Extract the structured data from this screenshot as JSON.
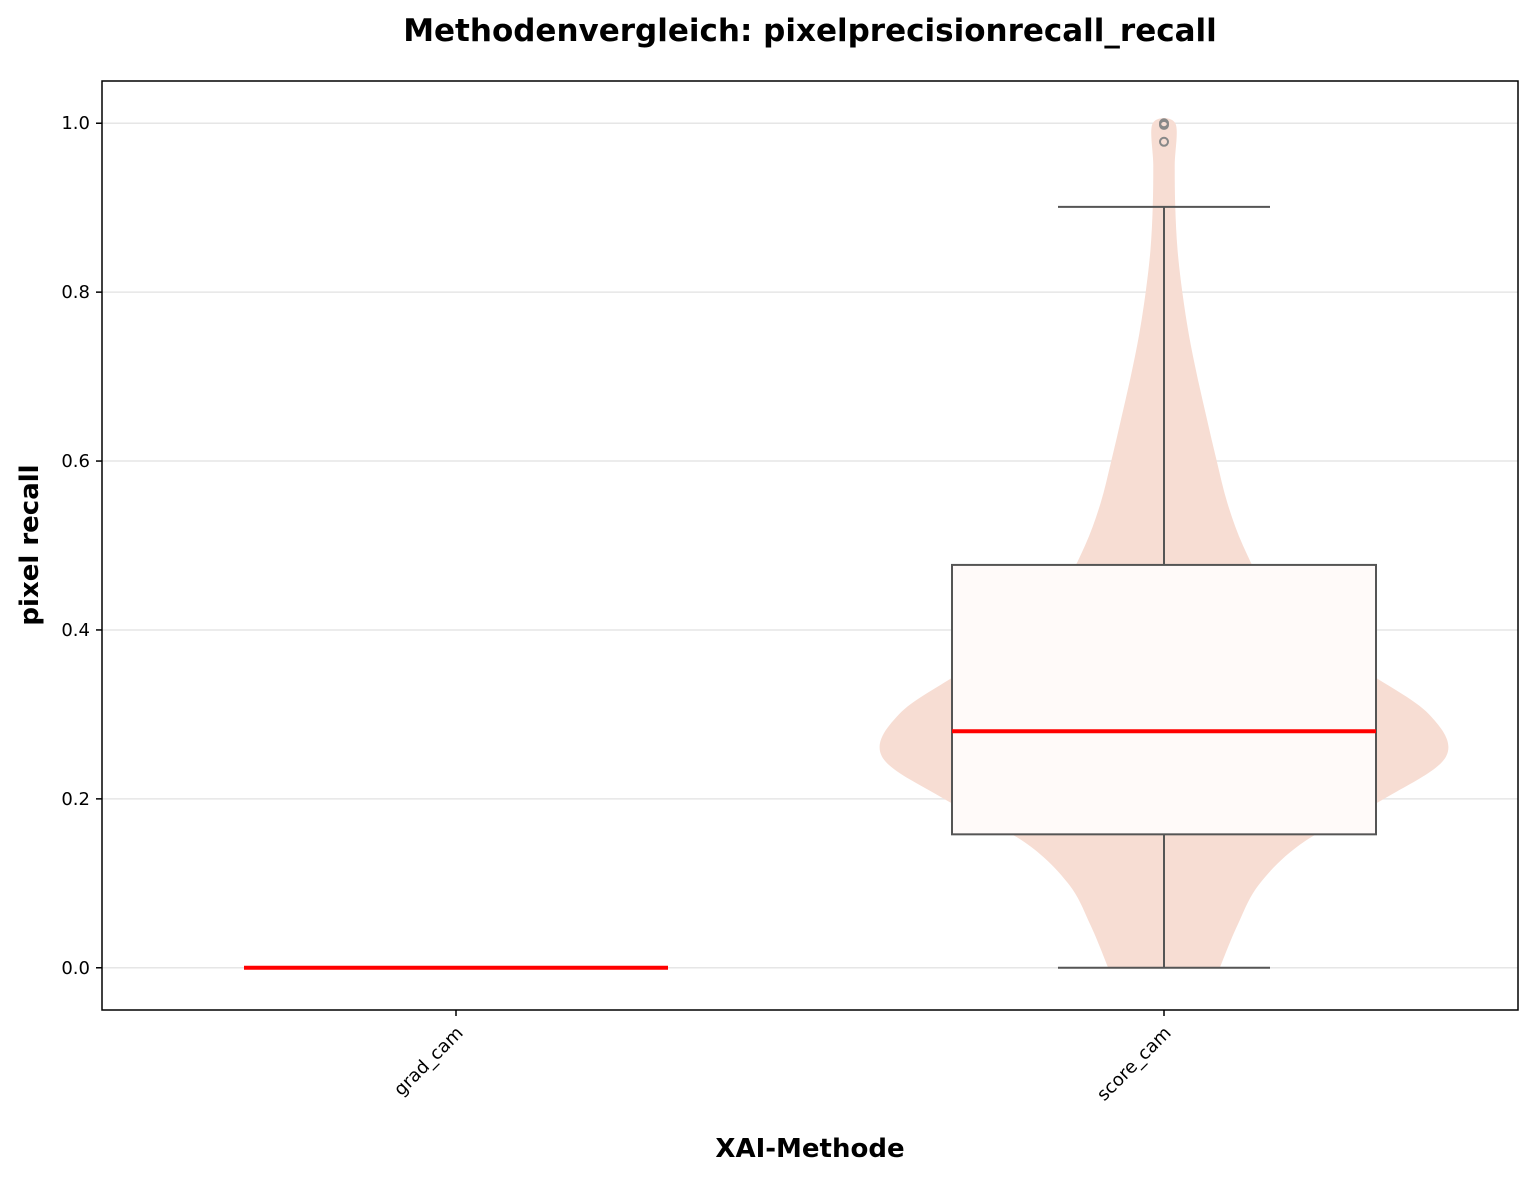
{
  "chart_data": {
    "type": "violin+box",
    "title": "Methodenvergleich: pixelprecisionrecall_recall",
    "xlabel": "XAI-Methode",
    "ylabel": "pixel recall",
    "ylim": [
      -0.05,
      1.05
    ],
    "yticks": [
      0.0,
      0.2,
      0.4,
      0.6,
      0.8,
      1.0
    ],
    "ytick_labels": [
      "0.0",
      "0.2",
      "0.4",
      "0.6",
      "0.8",
      "1.0"
    ],
    "grid": "horizontal",
    "categories": [
      "grad_cam",
      "score_cam"
    ],
    "series": [
      {
        "category": "grad_cam",
        "min": 0.0,
        "q1": 0.0,
        "median": 0.0,
        "q3": 0.0,
        "max": 0.0,
        "outliers": [],
        "violin": []
      },
      {
        "category": "score_cam",
        "min": 0.0,
        "q1": 0.158,
        "median": 0.28,
        "q3": 0.477,
        "max": 0.901,
        "outliers": [
          1.0,
          0.998,
          0.978
        ],
        "violin": [
          [
            0.0,
            0.198
          ],
          [
            0.05,
            0.26
          ],
          [
            0.1,
            0.34
          ],
          [
            0.15,
            0.5
          ],
          [
            0.2,
            0.78
          ],
          [
            0.25,
            1.0
          ],
          [
            0.3,
            0.94
          ],
          [
            0.35,
            0.72
          ],
          [
            0.4,
            0.49
          ],
          [
            0.45,
            0.36
          ],
          [
            0.5,
            0.28
          ],
          [
            0.55,
            0.225
          ],
          [
            0.6,
            0.187
          ],
          [
            0.65,
            0.152
          ],
          [
            0.7,
            0.118
          ],
          [
            0.75,
            0.088
          ],
          [
            0.8,
            0.065
          ],
          [
            0.85,
            0.048
          ],
          [
            0.9,
            0.04
          ],
          [
            0.95,
            0.038
          ],
          [
            1.0,
            0.04
          ]
        ]
      }
    ],
    "colors": {
      "violin_fill": "#f7ddd3",
      "box_fill": "#fffaf9",
      "box_edge": "#555555",
      "median": "#ff0000",
      "outlier": "#888888",
      "grid": "#e6e6e6",
      "axes": "#000000"
    }
  }
}
